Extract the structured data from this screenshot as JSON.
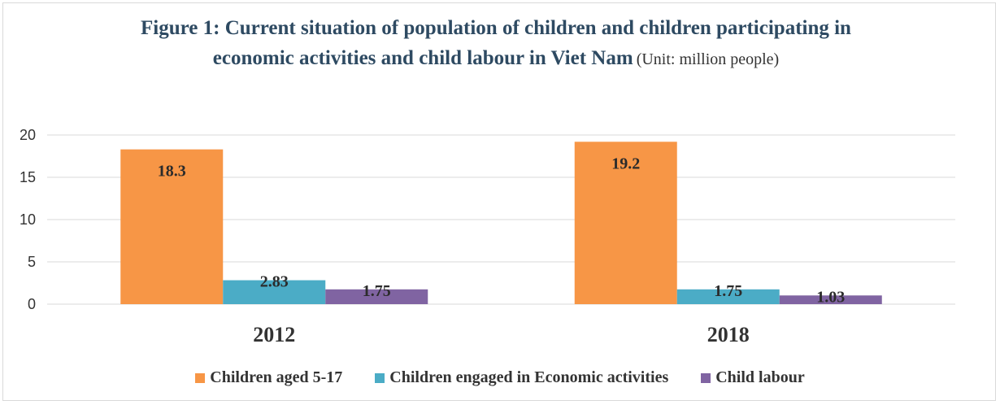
{
  "colors": {
    "series_0": "#f79646",
    "series_1": "#4bacc6",
    "series_2": "#8064a2",
    "grid": "#d9d9d9"
  },
  "chart_data": {
    "type": "bar",
    "title": "Figure 1: Current situation of population of children and children participating in economic activities and child labour in Viet Nam",
    "subtitle": "(Unit: million people)",
    "xlabel": "",
    "ylabel": "",
    "categories": [
      "2012",
      "2018"
    ],
    "series": [
      {
        "name": "Children aged 5-17",
        "values": [
          18.3,
          19.2
        ],
        "labels": [
          "18.3",
          "19.2"
        ]
      },
      {
        "name": "Children engaged in Economic activities",
        "values": [
          2.83,
          1.75
        ],
        "labels": [
          "2.83",
          "1.75"
        ]
      },
      {
        "name": "Child labour",
        "values": [
          1.75,
          1.03
        ],
        "labels": [
          "1.75",
          "1.03"
        ]
      }
    ],
    "ylim": [
      0,
      20
    ],
    "yticks": [
      "0",
      "5",
      "10",
      "15",
      "20"
    ],
    "grid": true,
    "legend": "bottom"
  }
}
